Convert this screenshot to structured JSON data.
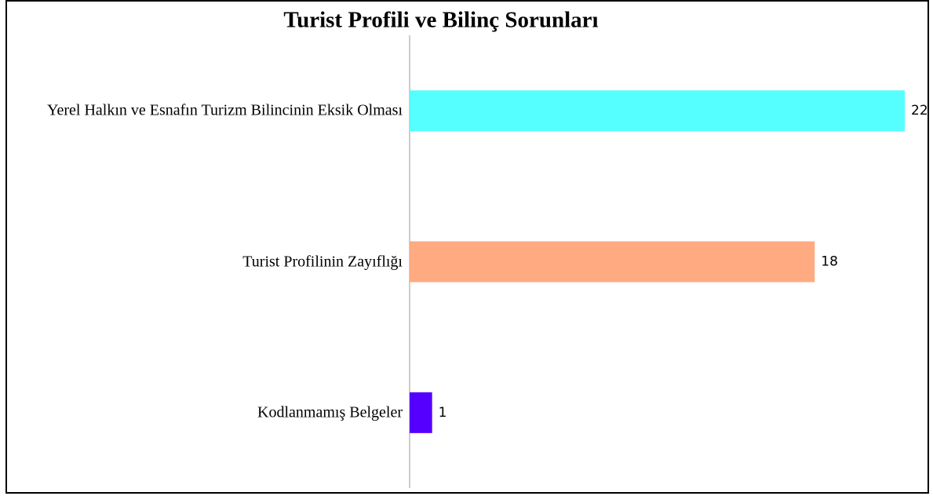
{
  "chart_data": {
    "type": "barh",
    "title": "Turist Profili ve Bilinç Sorunları",
    "categories": [
      "Yerel Halkın ve Esnafın Turizm Bilincinin Eksik Olması",
      "Turist Profilinin Zayıflığı",
      "Kodlanmamış Belgeler"
    ],
    "values": [
      22,
      18,
      1
    ],
    "colors": [
      "#55ffff",
      "#ffaa80",
      "#5500ff"
    ]
  }
}
